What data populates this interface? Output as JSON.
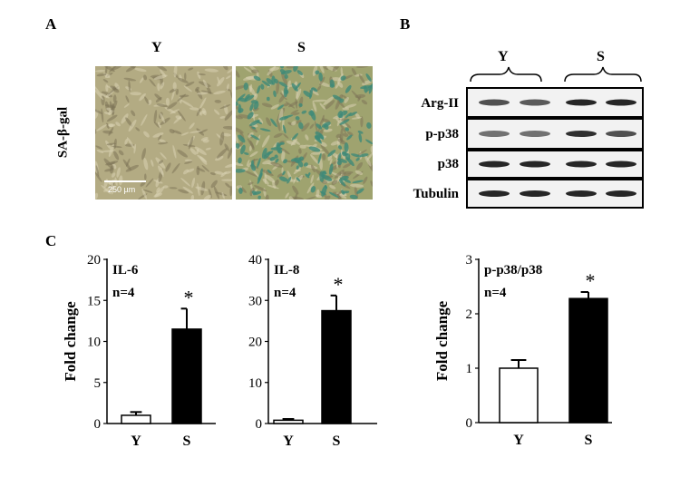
{
  "panels": {
    "a": {
      "letter": "A",
      "col_labels": [
        "Y",
        "S"
      ],
      "row_label": "SA-β-gal",
      "scale_bar": "250 µm",
      "colors": {
        "young_bg": "#b3ab83",
        "senescent_bg": "#9fa36f",
        "stain": "#3f8a78"
      }
    },
    "b": {
      "letter": "B",
      "group_labels": [
        "Y",
        "S"
      ],
      "rows": [
        {
          "label": "Arg-II"
        },
        {
          "label": "p-p38"
        },
        {
          "label": "p38"
        },
        {
          "label": "Tubulin"
        }
      ]
    },
    "c": {
      "letter": "C"
    }
  },
  "chart_data": [
    {
      "type": "bar",
      "categories": [
        "Y",
        "S"
      ],
      "values": [
        1.0,
        11.5
      ],
      "errors": [
        0.4,
        2.5
      ],
      "annotation": "IL-6",
      "n_text": "n=4",
      "significance": [
        "",
        "*"
      ],
      "ylabel": "Fold change",
      "ylim": [
        0,
        20
      ],
      "yticks": [
        0,
        5,
        10,
        15,
        20
      ],
      "colors": [
        "#ffffff",
        "#000000"
      ]
    },
    {
      "type": "bar",
      "categories": [
        "Y",
        "S"
      ],
      "values": [
        0.8,
        27.5
      ],
      "errors": [
        0.3,
        3.7
      ],
      "annotation": "IL-8",
      "n_text": "n=4",
      "significance": [
        "",
        "*"
      ],
      "ylabel": "",
      "ylim": [
        0,
        40
      ],
      "yticks": [
        0,
        10,
        20,
        30,
        40
      ],
      "colors": [
        "#ffffff",
        "#000000"
      ]
    },
    {
      "type": "bar",
      "categories": [
        "Y",
        "S"
      ],
      "values": [
        1.0,
        2.28
      ],
      "errors": [
        0.15,
        0.12
      ],
      "annotation": "p-p38/p38",
      "n_text": "n=4",
      "significance": [
        "",
        "*"
      ],
      "ylabel": "Fold change",
      "ylim": [
        0,
        3
      ],
      "yticks": [
        0,
        1,
        2,
        3
      ],
      "colors": [
        "#ffffff",
        "#000000"
      ]
    }
  ]
}
